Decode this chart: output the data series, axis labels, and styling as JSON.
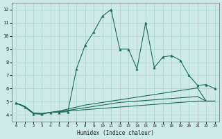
{
  "xlabel": "Humidex (Indice chaleur)",
  "x_ticks": [
    0,
    1,
    2,
    3,
    4,
    5,
    6,
    7,
    8,
    9,
    10,
    11,
    12,
    13,
    14,
    15,
    16,
    17,
    18,
    19,
    20,
    21,
    22,
    23
  ],
  "xlim": [
    -0.5,
    23.5
  ],
  "ylim": [
    3.5,
    12.5
  ],
  "y_ticks": [
    4,
    5,
    6,
    7,
    8,
    9,
    10,
    11,
    12
  ],
  "bg_color": "#ceeae7",
  "grid_color": "#aad4d0",
  "line_color": "#1a6b5a",
  "main_x": [
    0,
    1,
    2,
    3,
    4,
    5,
    6,
    7,
    8,
    9,
    10,
    11,
    12,
    13,
    14,
    15,
    16,
    17,
    18,
    19,
    20,
    21,
    22,
    23
  ],
  "main_y": [
    4.9,
    4.6,
    4.1,
    4.05,
    4.2,
    4.2,
    4.25,
    7.5,
    9.3,
    10.3,
    11.5,
    12.0,
    9.0,
    9.0,
    7.5,
    11.0,
    7.6,
    8.4,
    8.5,
    8.15,
    7.0,
    6.25,
    6.3,
    6.0
  ],
  "flat1_x": [
    0,
    1,
    2,
    3,
    4,
    5,
    6,
    7,
    8,
    9,
    10,
    11,
    12,
    13,
    14,
    15,
    16,
    17,
    18,
    19,
    20,
    21,
    22,
    23
  ],
  "flat1_y": [
    4.9,
    4.65,
    4.15,
    4.1,
    4.2,
    4.3,
    4.45,
    4.6,
    4.75,
    4.85,
    4.95,
    5.05,
    5.15,
    5.25,
    5.35,
    5.45,
    5.55,
    5.65,
    5.75,
    5.85,
    5.95,
    6.05,
    5.05,
    5.05
  ],
  "flat2_x": [
    0,
    1,
    2,
    3,
    4,
    5,
    6,
    7,
    8,
    9,
    10,
    11,
    12,
    13,
    14,
    15,
    16,
    17,
    18,
    19,
    20,
    21,
    22,
    23
  ],
  "flat2_y": [
    4.9,
    4.65,
    4.15,
    4.1,
    4.2,
    4.25,
    4.35,
    4.45,
    4.55,
    4.65,
    4.75,
    4.85,
    4.95,
    5.0,
    5.05,
    5.1,
    5.15,
    5.2,
    5.25,
    5.3,
    5.35,
    5.4,
    5.05,
    5.05
  ],
  "flat3_x": [
    0,
    1,
    2,
    3,
    4,
    5,
    6,
    7,
    8,
    9,
    10,
    11,
    12,
    13,
    14,
    15,
    16,
    17,
    18,
    19,
    20,
    21,
    22,
    23
  ],
  "flat3_y": [
    4.9,
    4.65,
    4.15,
    4.1,
    4.2,
    4.25,
    4.3,
    4.35,
    4.4,
    4.45,
    4.5,
    4.55,
    4.6,
    4.65,
    4.7,
    4.75,
    4.8,
    4.85,
    4.9,
    4.95,
    5.0,
    5.05,
    5.05,
    5.05
  ]
}
